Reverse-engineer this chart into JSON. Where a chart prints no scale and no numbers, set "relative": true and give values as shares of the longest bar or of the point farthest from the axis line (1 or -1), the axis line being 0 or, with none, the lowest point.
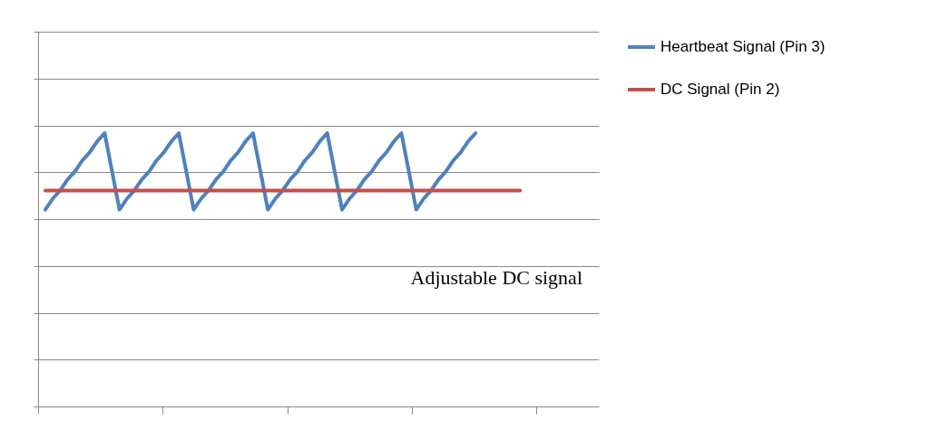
{
  "chart_data": {
    "type": "line",
    "relative": true,
    "grid": "y",
    "legend": "right",
    "tick_labels": false,
    "categories": [
      null,
      null,
      null,
      null,
      null,
      null,
      null,
      null,
      null,
      null,
      null,
      null,
      null,
      null,
      null,
      null,
      null,
      null,
      null,
      null,
      null,
      null,
      null,
      null,
      null,
      null,
      null,
      null,
      null,
      null,
      null,
      null,
      null,
      null,
      null,
      null,
      null,
      null,
      null,
      null,
      null,
      null,
      null,
      null,
      null,
      null,
      null,
      null,
      null,
      null,
      null,
      null,
      null,
      null,
      null,
      null,
      null,
      null,
      null,
      null,
      null,
      null,
      null,
      null,
      null
    ],
    "series": [
      {
        "name": "Heartbeat Signal (Pin 3)",
        "color": "#4f81bd",
        "values": [
          0.72,
          0.76,
          0.79,
          0.83,
          0.86,
          0.9,
          0.93,
          0.97,
          1,
          0.86,
          0.72,
          0.76,
          0.79,
          0.83,
          0.86,
          0.9,
          0.93,
          0.97,
          1,
          0.86,
          0.72,
          0.76,
          0.79,
          0.83,
          0.86,
          0.9,
          0.93,
          0.97,
          1,
          0.86,
          0.72,
          0.76,
          0.79,
          0.83,
          0.86,
          0.9,
          0.93,
          0.97,
          1,
          0.86,
          0.72,
          0.76,
          0.79,
          0.83,
          0.86,
          0.9,
          0.93,
          0.97,
          1,
          0.86,
          0.72,
          0.76,
          0.79,
          0.83,
          0.86,
          0.9,
          0.93,
          0.97,
          1,
          null,
          null,
          null,
          null,
          null,
          null
        ]
      },
      {
        "name": "DC Signal (Pin 2)",
        "color": "#c0504d",
        "values": [
          0.79,
          0.79,
          0.79,
          0.79,
          0.79,
          0.79,
          0.79,
          0.79,
          0.79,
          0.79,
          0.79,
          0.79,
          0.79,
          0.79,
          0.79,
          0.79,
          0.79,
          0.79,
          0.79,
          0.79,
          0.79,
          0.79,
          0.79,
          0.79,
          0.79,
          0.79,
          0.79,
          0.79,
          0.79,
          0.79,
          0.79,
          0.79,
          0.79,
          0.79,
          0.79,
          0.79,
          0.79,
          0.79,
          0.79,
          0.79,
          0.79,
          0.79,
          0.79,
          0.79,
          0.79,
          0.79,
          0.79,
          0.79,
          0.79,
          0.79,
          0.79,
          0.79,
          0.79,
          0.79,
          0.79,
          0.79,
          0.79,
          0.79,
          0.79,
          0.79,
          0.79,
          0.79,
          0.79,
          0.79,
          0.79
        ]
      }
    ],
    "annotations": [
      "Adjustable DC signal"
    ]
  }
}
